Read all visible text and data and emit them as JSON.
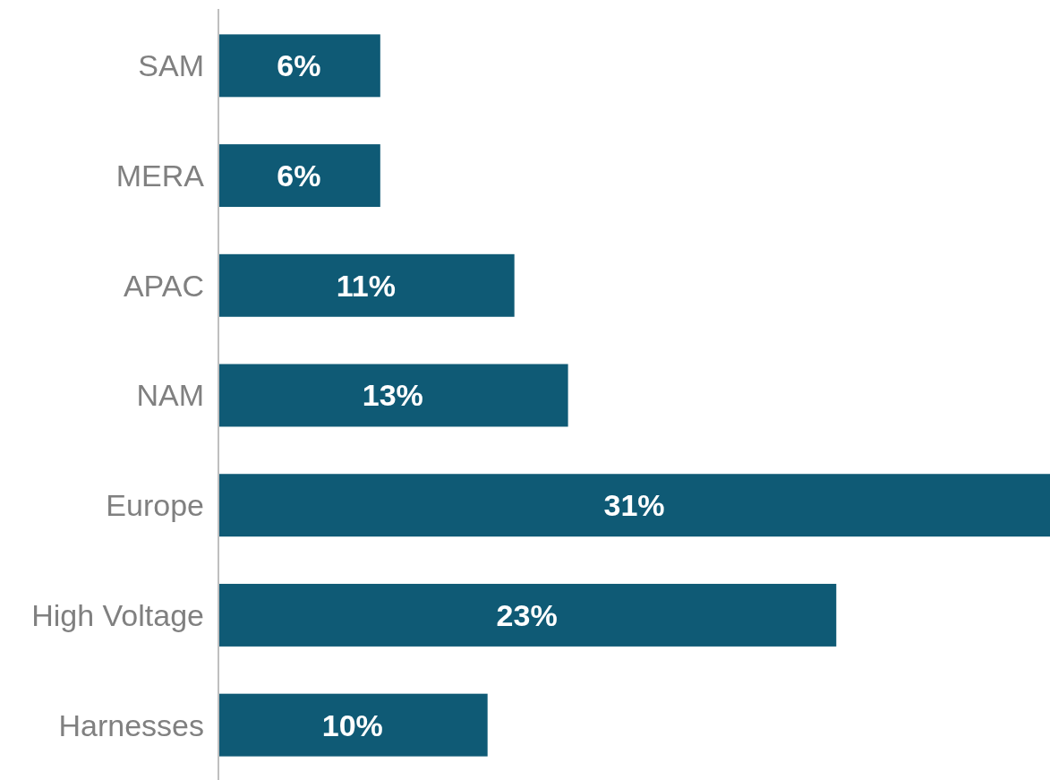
{
  "chart_data": {
    "type": "bar",
    "orientation": "horizontal",
    "categories": [
      "SAM",
      "MERA",
      "APAC",
      "NAM",
      "Europe",
      "High Voltage",
      "Harnesses"
    ],
    "values": [
      6,
      6,
      11,
      13,
      31,
      23,
      10
    ],
    "value_labels": [
      "6%",
      "6%",
      "11%",
      "13%",
      "31%",
      "23%",
      "10%"
    ],
    "color": "#0f5a75"
  }
}
